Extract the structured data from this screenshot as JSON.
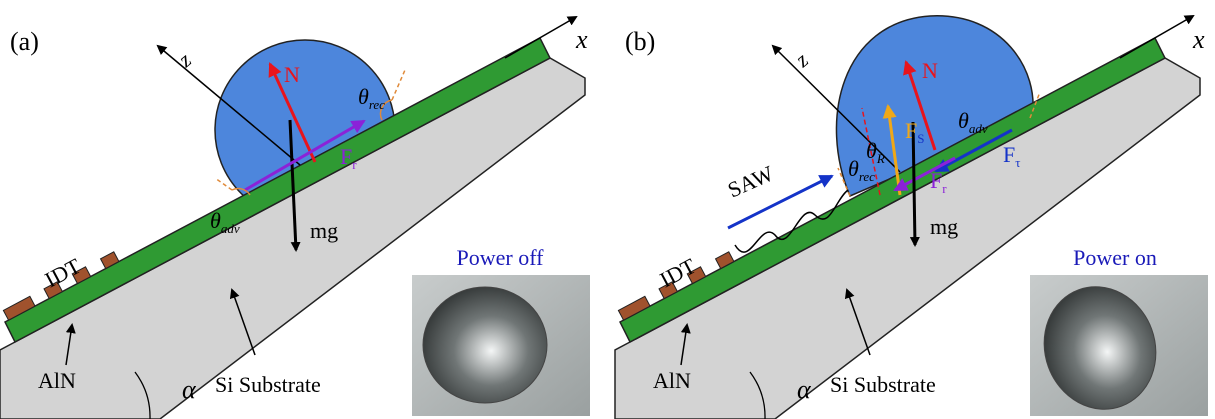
{
  "panels": [
    {
      "label": "(a)",
      "z": "z",
      "x": "x",
      "N": "N",
      "theta_rec": {
        "main": "θ",
        "sub": "rec"
      },
      "theta_adv": {
        "main": "θ",
        "sub": "adv"
      },
      "Fr": {
        "main": "F",
        "sub": "r"
      },
      "mg": "mg",
      "IDT": "IDT",
      "AlN": "AlN",
      "substrate": "Si Substrate",
      "alpha": "α",
      "photo_caption": "Power off"
    },
    {
      "label": "(b)",
      "z": "z",
      "x": "x",
      "N": "N",
      "SAW": "SAW",
      "Fs": {
        "main": "F",
        "sub": "S"
      },
      "theta_R": {
        "main": "θ",
        "sub": "R"
      },
      "theta_adv": {
        "main": "θ",
        "sub": "adv"
      },
      "theta_rec": {
        "main": "θ",
        "sub": "rec"
      },
      "Ftau": {
        "main": "F",
        "sub": "τ"
      },
      "Fr": {
        "main": "F",
        "sub": "r"
      },
      "mg": "mg",
      "IDT": "IDT",
      "AlN": "AlN",
      "substrate": "Si Substrate",
      "alpha": "α",
      "photo_caption": "Power on"
    }
  ]
}
